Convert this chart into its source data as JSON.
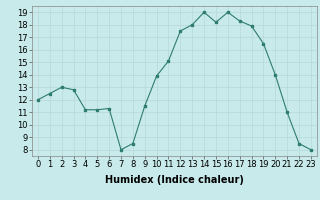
{
  "x": [
    0,
    1,
    2,
    3,
    4,
    5,
    6,
    7,
    8,
    9,
    10,
    11,
    12,
    13,
    14,
    15,
    16,
    17,
    18,
    19,
    20,
    21,
    22,
    23
  ],
  "y": [
    12.0,
    12.5,
    13.0,
    12.8,
    11.2,
    11.2,
    11.3,
    8.0,
    8.5,
    11.5,
    13.9,
    15.1,
    17.5,
    18.0,
    19.0,
    18.2,
    19.0,
    18.3,
    17.9,
    16.5,
    14.0,
    11.0,
    8.5,
    8.0
  ],
  "line_color": "#2e7d6e",
  "marker_color": "#2e7d6e",
  "bg_color": "#c8eaea",
  "grid_color": "#b8d8d8",
  "xlabel": "Humidex (Indice chaleur)",
  "xlabel_fontsize": 7,
  "tick_fontsize": 6,
  "ylim": [
    7.5,
    19.5
  ],
  "xlim": [
    -0.5,
    23.5
  ],
  "yticks": [
    8,
    9,
    10,
    11,
    12,
    13,
    14,
    15,
    16,
    17,
    18,
    19
  ],
  "xticks": [
    0,
    1,
    2,
    3,
    4,
    5,
    6,
    7,
    8,
    9,
    10,
    11,
    12,
    13,
    14,
    15,
    16,
    17,
    18,
    19,
    20,
    21,
    22,
    23
  ]
}
